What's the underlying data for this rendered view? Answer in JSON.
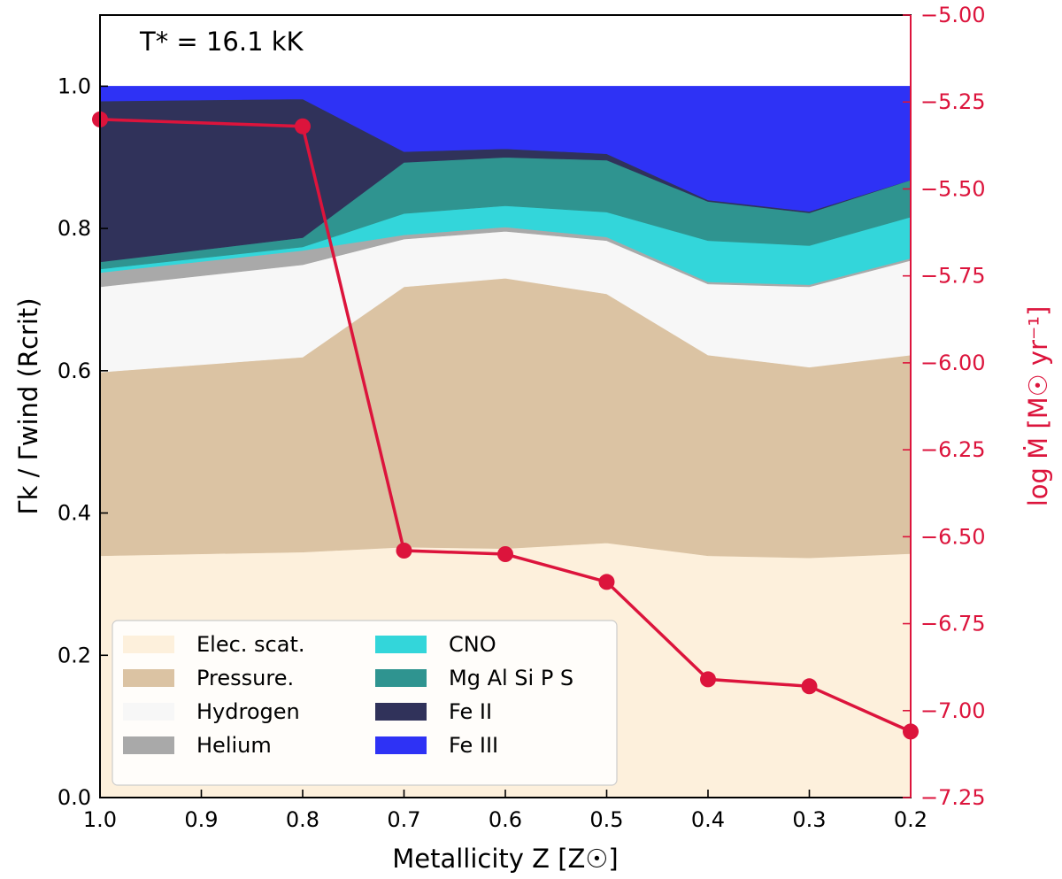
{
  "chart_data": {
    "type": "area",
    "annotation": "T* = 16.1 kK",
    "xlabel": "Metallicity Z [Z☉]",
    "ylabel": "Γk / Γwind (Rcrit)",
    "ylabel_right": "log Ṁ [M☉ yr⁻¹]",
    "x": [
      1.0,
      0.8,
      0.7,
      0.6,
      0.5,
      0.4,
      0.3,
      0.2
    ],
    "xlim": [
      1.0,
      0.2
    ],
    "ylim": [
      0.0,
      1.1
    ],
    "ylim_right": [
      -7.25,
      -5.0
    ],
    "x_ticks": [
      "1.0",
      "0.9",
      "0.8",
      "0.7",
      "0.6",
      "0.5",
      "0.4",
      "0.3",
      "0.2"
    ],
    "x_tick_values": [
      1.0,
      0.9,
      0.8,
      0.7,
      0.6,
      0.5,
      0.4,
      0.3,
      0.2
    ],
    "y_ticks": [
      "0.0",
      "0.2",
      "0.4",
      "0.6",
      "0.8",
      "1.0"
    ],
    "y_tick_values": [
      0.0,
      0.2,
      0.4,
      0.6,
      0.8,
      1.0
    ],
    "y_right_ticks": [
      "−5.00",
      "−5.25",
      "−5.50",
      "−5.75",
      "−6.00",
      "−6.25",
      "−6.50",
      "−6.75",
      "−7.00",
      "−7.25"
    ],
    "y_right_tick_values": [
      -5.0,
      -5.25,
      -5.5,
      -5.75,
      -6.0,
      -6.25,
      -6.5,
      -6.75,
      -7.0,
      -7.25
    ],
    "grid": false,
    "legend_position": "bottom-left",
    "legend_columns": 2,
    "series": [
      {
        "name": "Elec. scat.",
        "color": "#fdf0dc",
        "values": [
          0.34,
          0.345,
          0.352,
          0.35,
          0.358,
          0.34,
          0.337,
          0.343
        ]
      },
      {
        "name": "Pressure.",
        "color": "#dbc3a3",
        "values": [
          0.258,
          0.274,
          0.366,
          0.38,
          0.35,
          0.282,
          0.268,
          0.279
        ]
      },
      {
        "name": "Hydrogen",
        "color": "#f7f7f7",
        "values": [
          0.12,
          0.13,
          0.067,
          0.066,
          0.075,
          0.1,
          0.113,
          0.133
        ]
      },
      {
        "name": "Helium",
        "color": "#a9a9a9",
        "values": [
          0.02,
          0.02,
          0.006,
          0.006,
          0.005,
          0.003,
          0.003,
          0.003
        ]
      },
      {
        "name": "CNO",
        "color": "#33d6da",
        "values": [
          0.005,
          0.005,
          0.03,
          0.03,
          0.035,
          0.058,
          0.055,
          0.058
        ]
      },
      {
        "name": "Mg Al Si P S",
        "color": "#2f9490",
        "values": [
          0.01,
          0.013,
          0.072,
          0.068,
          0.073,
          0.055,
          0.046,
          0.052
        ]
      },
      {
        "name": "Fe II",
        "color": "#30325a",
        "values": [
          0.226,
          0.195,
          0.015,
          0.012,
          0.009,
          0.002,
          0.002,
          0.0
        ]
      },
      {
        "name": "Fe III",
        "color": "#2e32f5",
        "values": [
          0.021,
          0.018,
          0.092,
          0.088,
          0.095,
          0.16,
          0.176,
          0.132
        ]
      }
    ],
    "line_series": {
      "name": "log Ṁ",
      "axis": "right",
      "color": "#dc143c",
      "values": [
        -5.3,
        -5.32,
        -6.54,
        -6.55,
        -6.63,
        -6.91,
        -6.93,
        -7.06
      ]
    }
  }
}
